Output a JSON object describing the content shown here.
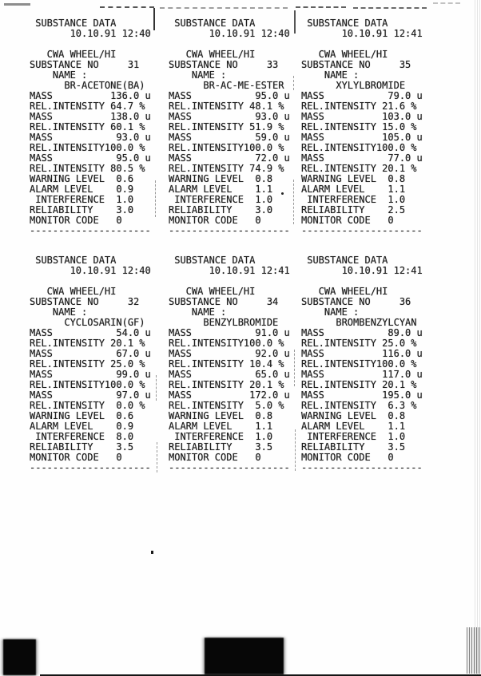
{
  "page": {
    "kind": "scanned dot-matrix printout sheet",
    "ink_color": "#1f1f1f",
    "paper_color": "#fefefe"
  },
  "labels": {
    "title": "SUBSTANCE DATA",
    "wheel": "CWA WHEEL/HI",
    "substance_no": "SUBSTANCE NO",
    "name": "NAME :",
    "mass": "MASS",
    "rel_intensity": "REL.INTENSITY",
    "warning": "WARNING LEVEL",
    "alarm": "ALARM LEVEL",
    "interference": "INTERFERENCE",
    "reliability": "RELIABILITY",
    "monitor": "MONITOR CODE",
    "mass_unit": "u",
    "intensity_unit": "%",
    "divider_char": "-"
  },
  "printouts": [
    {
      "timestamp": "10.10.91 12:40",
      "substance_no": "31",
      "name": "BR-ACETONE(BA)",
      "peaks": [
        {
          "mass": "136.0",
          "intensity": "64.7"
        },
        {
          "mass": "138.0",
          "intensity": "60.1"
        },
        {
          "mass": "93.0",
          "intensity": "100.0"
        },
        {
          "mass": "95.0",
          "intensity": "80.5"
        }
      ],
      "warning_level": "0.6",
      "alarm_level": "0.9",
      "interference": "1.0",
      "reliability": "3.0",
      "monitor_code": "0"
    },
    {
      "timestamp": "10.10.91 12:40",
      "substance_no": "33",
      "name": "BR-AC-ME-ESTER",
      "peaks": [
        {
          "mass": "95.0",
          "intensity": "48.1"
        },
        {
          "mass": "93.0",
          "intensity": "51.9"
        },
        {
          "mass": "59.0",
          "intensity": "100.0"
        },
        {
          "mass": "72.0",
          "intensity": "74.9"
        }
      ],
      "warning_level": "0.8",
      "alarm_level": "1.1",
      "interference": "1.0",
      "reliability": "3.0",
      "monitor_code": "0"
    },
    {
      "timestamp": "10.10.91 12:41",
      "substance_no": "35",
      "name": "XYLYLBROMIDE",
      "peaks": [
        {
          "mass": "79.0",
          "intensity": "21.6"
        },
        {
          "mass": "103.0",
          "intensity": "15.0"
        },
        {
          "mass": "105.0",
          "intensity": "100.0"
        },
        {
          "mass": "77.0",
          "intensity": "20.1"
        }
      ],
      "warning_level": "0.8",
      "alarm_level": "1.1",
      "interference": "1.0",
      "reliability": "2.5",
      "monitor_code": "0"
    },
    {
      "timestamp": "10.10.91 12:40",
      "substance_no": "32",
      "name": "CYCLOSARIN(GF)",
      "peaks": [
        {
          "mass": "54.0",
          "intensity": "20.1"
        },
        {
          "mass": "67.0",
          "intensity": "25.0"
        },
        {
          "mass": "99.0",
          "intensity": "100.0"
        },
        {
          "mass": "97.0",
          "intensity": "0.0"
        }
      ],
      "warning_level": "0.6",
      "alarm_level": "0.9",
      "interference": "8.0",
      "reliability": "3.5",
      "monitor_code": "0"
    },
    {
      "timestamp": "10.10.91 12:41",
      "substance_no": "34",
      "name": "BENZYLBROMIDE",
      "peaks": [
        {
          "mass": "91.0",
          "intensity": "100.0"
        },
        {
          "mass": "92.0",
          "intensity": "10.4"
        },
        {
          "mass": "65.0",
          "intensity": "20.1"
        },
        {
          "mass": "172.0",
          "intensity": "5.0"
        }
      ],
      "warning_level": "0.8",
      "alarm_level": "1.1",
      "interference": "1.0",
      "reliability": "3.5",
      "monitor_code": "0"
    },
    {
      "timestamp": "10.10.91 12:41",
      "substance_no": "36",
      "name": "BROMBENZYLCYAN",
      "peaks": [
        {
          "mass": "89.0",
          "intensity": "25.0"
        },
        {
          "mass": "116.0",
          "intensity": "100.0"
        },
        {
          "mass": "117.0",
          "intensity": "20.1"
        },
        {
          "mass": "195.0",
          "intensity": "6.3"
        }
      ],
      "warning_level": "0.8",
      "alarm_level": "1.1",
      "interference": "1.0",
      "reliability": "3.5",
      "monitor_code": "0"
    }
  ]
}
